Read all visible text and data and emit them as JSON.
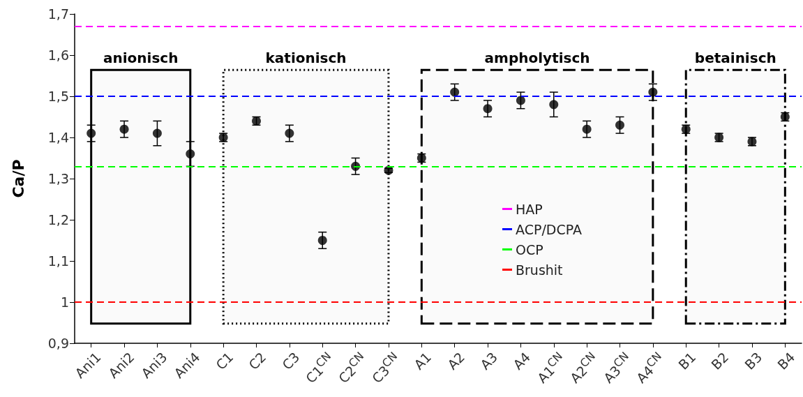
{
  "chart_data": {
    "type": "scatter",
    "ylabel": "Ca/P",
    "categories": [
      "Ani1",
      "Ani2",
      "Ani3",
      "Ani4",
      "C1",
      "C2",
      "C3",
      "C1$^{CN}$",
      "C2$^{CN}$",
      "C3$^{CN}$",
      "A1",
      "A2",
      "A3",
      "A4",
      "A1$^{CN}$",
      "A2$^{CN}$",
      "A3$^{CN}$",
      "A4$^{CN}$",
      "B1",
      "B2",
      "B3",
      "B4"
    ],
    "series": [
      {
        "color": "#000000",
        "marker": "circle",
        "values": [
          1.41,
          1.42,
          1.41,
          1.36,
          1.4,
          1.44,
          1.41,
          1.15,
          1.33,
          1.32,
          1.35,
          1.51,
          1.47,
          1.49,
          1.48,
          1.42,
          1.43,
          1.51,
          1.42,
          1.4,
          1.39,
          1.45
        ],
        "errors": [
          0.02,
          0.02,
          0.03,
          0.03,
          0.01,
          0.01,
          0.02,
          0.02,
          0.02,
          0.005,
          0.01,
          0.02,
          0.02,
          0.02,
          0.03,
          0.02,
          0.02,
          0.02,
          0.01,
          0.01,
          0.01,
          0.01
        ]
      }
    ],
    "ylim": [
      0.9,
      1.7
    ],
    "yticks": [
      {
        "value": 0.9,
        "label": "0,9"
      },
      1,
      {
        "value": 1.1,
        "label": "1,1"
      },
      {
        "value": 1.2,
        "label": "1,2"
      },
      {
        "value": 1.3,
        "label": "1,3"
      },
      {
        "value": 1.4,
        "label": "1,4"
      },
      {
        "value": 1.5,
        "label": "1,5"
      },
      {
        "value": 1.6,
        "label": "1,6"
      },
      {
        "value": 1.7,
        "label": "1,7"
      }
    ],
    "ref_lines": [
      {
        "axis": "y",
        "value": 1.67,
        "label": "HAP",
        "color": "#ff00ff",
        "line_style": "dashed"
      },
      {
        "axis": "y",
        "value": 1.5,
        "label": "ACP/DCPA",
        "color": "#0000ff",
        "line_style": "dashed"
      },
      {
        "axis": "y",
        "value": 1.33,
        "label": "OCP",
        "color": "#00ff00",
        "line_style": "dashed"
      },
      {
        "axis": "y",
        "value": 1.0,
        "label": "Brushit",
        "color": "#ff0000",
        "line_style": "dashed"
      }
    ],
    "bands": [
      {
        "axis": "x",
        "from": "Ani1",
        "to": "Ani4",
        "label": "anionisch"
      },
      {
        "axis": "x",
        "from": "C1",
        "to": "C3$^{CN}$",
        "label": "kationisch"
      },
      {
        "axis": "x",
        "from": "A1",
        "to": "A4$^{CN}$",
        "label": "ampholytisch"
      },
      {
        "axis": "x",
        "from": "B1",
        "to": "B4",
        "label": "betainisch"
      }
    ],
    "legend": "bottom",
    "grid": false
  }
}
